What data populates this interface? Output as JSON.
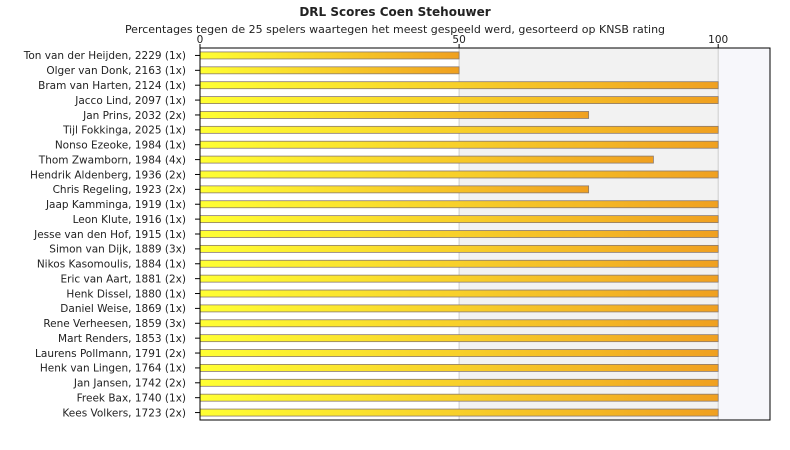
{
  "chart_data": {
    "type": "bar",
    "orientation": "horizontal",
    "title": "DRL Scores Coen Stehouwer",
    "subtitle": "Percentages tegen de 25 spelers waartegen het meest gespeeld werd, gesorteerd op KNSB rating",
    "xlim": [
      0,
      110
    ],
    "xticks": [
      0,
      50,
      100
    ],
    "categories": [
      "Ton van der Heijden, 2229 (1x)",
      "Olger van Donk, 2163 (1x)",
      "Bram van Harten, 2124 (1x)",
      "Jacco Lind, 2097 (1x)",
      "Jan Prins, 2032 (2x)",
      "Tijl Fokkinga, 2025 (1x)",
      "Nonso Ezeoke, 1984 (1x)",
      "Thom Zwamborn, 1984 (4x)",
      "Hendrik Aldenberg, 1936 (2x)",
      "Chris Regeling, 1923 (2x)",
      "Jaap Kamminga, 1919 (1x)",
      "Leon Klute, 1916 (1x)",
      "Jesse van den Hof, 1915 (1x)",
      "Simon van Dijk, 1889 (3x)",
      "Nikos Kasomoulis, 1884 (1x)",
      "Eric van Aart, 1881 (2x)",
      "Henk Dissel, 1880 (1x)",
      "Daniel Weise, 1869 (1x)",
      "Rene Verheesen, 1859 (3x)",
      "Mart Renders, 1853 (1x)",
      "Laurens Pollmann, 1791 (2x)",
      "Henk van Lingen, 1764 (1x)",
      "Jan Jansen, 1742 (2x)",
      "Freek Bax, 1740 (1x)",
      "Kees Volkers, 1723 (2x)"
    ],
    "values": [
      50,
      50,
      100,
      100,
      75,
      100,
      100,
      87.5,
      100,
      75,
      100,
      100,
      100,
      100,
      100,
      100,
      100,
      100,
      100,
      100,
      100,
      100,
      100,
      100,
      100
    ],
    "colors": {
      "bar_light": "#ffff33",
      "bar_dark": "#f0a020",
      "bar_border": "#8a7a70",
      "band_light": "#f2f2f2",
      "band_alt": "#ffffff",
      "band_far": "#f7f7fb",
      "axis": "#000000",
      "grid": "#cccccc"
    }
  }
}
